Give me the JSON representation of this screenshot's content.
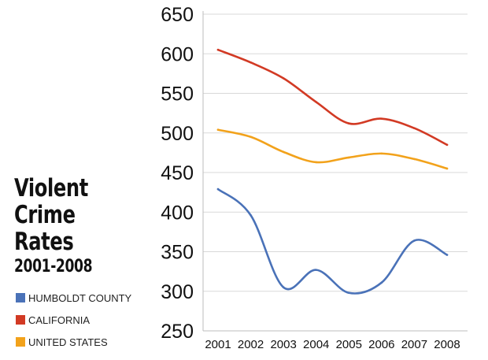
{
  "chart_data": {
    "type": "line",
    "title_lines": [
      "Violent",
      "Crime",
      "Rates"
    ],
    "subtitle": "2001-2008",
    "categories": [
      "2001",
      "2002",
      "2003",
      "2004",
      "2005",
      "2006",
      "2007",
      "2008"
    ],
    "ylim": [
      250,
      650
    ],
    "yticks": [
      "250",
      "300",
      "350",
      "400",
      "450",
      "500",
      "550",
      "600",
      "650"
    ],
    "grid": true,
    "legend_position": "left",
    "series": [
      {
        "name": "HUMBOLDT COUNTY",
        "color": "#4a72b8",
        "values": [
          429,
          396,
          305,
          327,
          298,
          311,
          364,
          346
        ]
      },
      {
        "name": "CALIFORNIA",
        "color": "#d23a24",
        "values": [
          605,
          589,
          569,
          539,
          512,
          518,
          506,
          485
        ]
      },
      {
        "name": "UNITED STATES",
        "color": "#f2a21b",
        "values": [
          504,
          495,
          476,
          463,
          469,
          474,
          467,
          455
        ]
      }
    ]
  }
}
